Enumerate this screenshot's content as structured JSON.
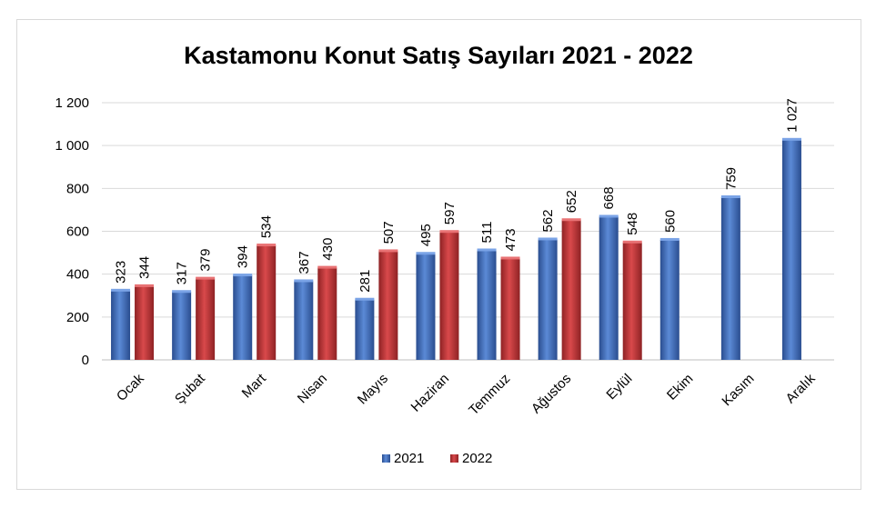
{
  "chart_data": {
    "type": "bar",
    "title": "Kastamonu Konut Satış Sayıları 2021 - 2022",
    "xlabel": "",
    "ylabel": "",
    "categories": [
      "Ocak",
      "Şubat",
      "Mart",
      "Nisan",
      "Mayıs",
      "Haziran",
      "Temmuz",
      "Ağustos",
      "Eylül",
      "Ekim",
      "Kasım",
      "Aralık"
    ],
    "series": [
      {
        "name": "2021",
        "color": "#4472c4",
        "values": [
          323,
          317,
          394,
          367,
          281,
          495,
          511,
          562,
          668,
          560,
          759,
          1027
        ],
        "labels": [
          "323",
          "317",
          "394",
          "367",
          "281",
          "495",
          "511",
          "562",
          "668",
          "560",
          "759",
          "1 027"
        ]
      },
      {
        "name": "2022",
        "color": "#c0393b",
        "values": [
          344,
          379,
          534,
          430,
          507,
          597,
          473,
          652,
          548,
          null,
          null,
          null
        ],
        "labels": [
          "344",
          "379",
          "534",
          "430",
          "507",
          "597",
          "473",
          "652",
          "548",
          "",
          "",
          ""
        ]
      }
    ],
    "ylim": [
      0,
      1200
    ],
    "yticks": [
      0,
      200,
      400,
      600,
      800,
      1000,
      1200
    ],
    "ytick_labels": [
      "0",
      "200",
      "400",
      "600",
      "800",
      "1 000",
      "1 200"
    ],
    "grid": true,
    "legend_position": "bottom"
  }
}
